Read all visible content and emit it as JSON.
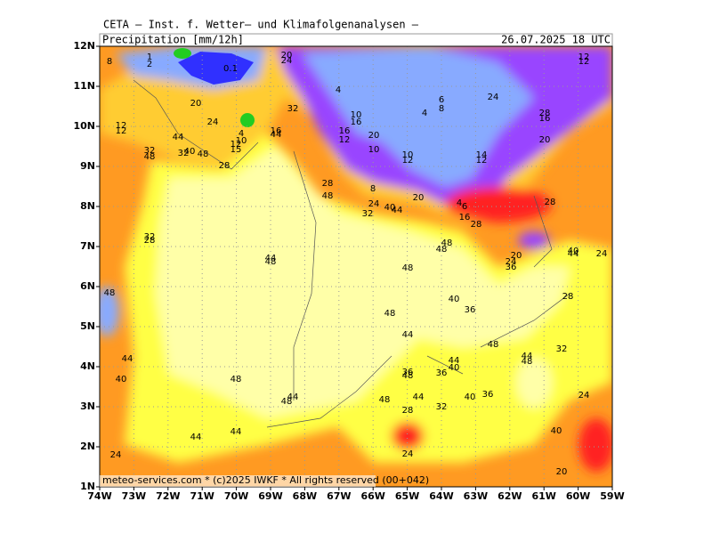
{
  "header": {
    "title": "CETA — Inst. f. Wetter— und Klimafolgenanalysen —",
    "subtitle": "Precipitation [mm/12h]",
    "valid_time": "26.07.2025 18 UTC"
  },
  "map": {
    "lon_labels": [
      "74W",
      "73W",
      "72W",
      "71W",
      "70W",
      "69W",
      "68W",
      "67W",
      "66W",
      "65W",
      "64W",
      "63W",
      "62W",
      "61W",
      "60W",
      "59W"
    ],
    "lat_labels": [
      "12N",
      "11N",
      "10N",
      "9N",
      "8N",
      "7N",
      "6N",
      "5N",
      "4N",
      "3N",
      "2N",
      "1N"
    ],
    "contour_labels": [
      8,
      1,
      2,
      0.1,
      20,
      24,
      4,
      6,
      8,
      4,
      24,
      12,
      12,
      28,
      16,
      20,
      24,
      32,
      10,
      16,
      12,
      12,
      44,
      16,
      44,
      4,
      10,
      12,
      15,
      16,
      12,
      20,
      10,
      10,
      12,
      14,
      12,
      20,
      32,
      48,
      32,
      40,
      48,
      28,
      28,
      48,
      8,
      20,
      24,
      32,
      40,
      44,
      4,
      6,
      16,
      28,
      28,
      32,
      28,
      44,
      48,
      48,
      48,
      48,
      20,
      24,
      36,
      40,
      44,
      24,
      48,
      40,
      36,
      28,
      48,
      44,
      48,
      44,
      48,
      32,
      44,
      44,
      40,
      36,
      48,
      36,
      40,
      48,
      44,
      48,
      48,
      44,
      40,
      36,
      24,
      32,
      28,
      44,
      44,
      40,
      24,
      24,
      20
    ]
  },
  "footer": "meteo-services.com * (c)2025 IWKF * All rights reserved (00+042)"
}
